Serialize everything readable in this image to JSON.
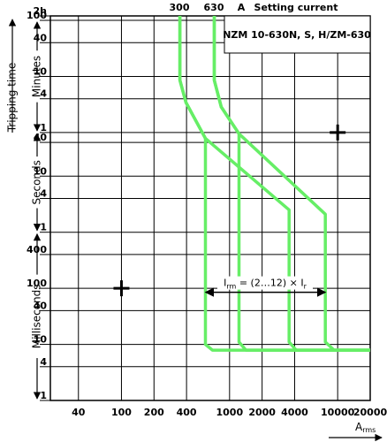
{
  "chart_data": {
    "type": "line",
    "log_x": true,
    "log_y": true,
    "grid": true,
    "xlim": [
      22,
      20000
    ],
    "xticks": [
      40,
      100,
      200,
      400,
      1000,
      2000,
      4000,
      10000,
      20000
    ],
    "ylim": [
      0.001,
      7200
    ],
    "yticks": [
      {
        "value": 7200,
        "label": "2h"
      },
      {
        "value": 6000,
        "label": "100"
      },
      {
        "value": 2400,
        "label": "40"
      },
      {
        "value": 600,
        "label": "10"
      },
      {
        "value": 240,
        "label": "4"
      },
      {
        "value": 60,
        "label": "1"
      },
      40,
      10,
      4,
      1,
      {
        "value": 0.4,
        "label": "400"
      },
      {
        "value": 0.1,
        "label": "100"
      },
      {
        "value": 0.04,
        "label": "40"
      },
      {
        "value": 0.01,
        "label": "10"
      },
      {
        "value": 0.004,
        "label": "4"
      },
      {
        "value": 0.001,
        "label": "1"
      }
    ],
    "y_label": "Tripping time",
    "y_ranges": [
      {
        "label": "Minutes",
        "from": 6000,
        "to": 60
      },
      {
        "label": "Seconds",
        "from": 60,
        "to": 1
      },
      {
        "label": "Milliseconds",
        "from": 1,
        "to": 0.001
      }
    ],
    "x_label": {
      "main": "A",
      "sub": "rms"
    },
    "top_labels": [
      "300",
      "630",
      "A",
      "Setting current"
    ],
    "box_title": "NZM 10-630N, S, H/ZM-630",
    "irm_label": [
      "I",
      "rm",
      " = (2…12) × I",
      "r"
    ],
    "irm_range": [
      600,
      7700
    ],
    "irm_time": 0.085,
    "markers": [
      {
        "x": 100,
        "y": 0.1
      },
      {
        "x": 10000,
        "y": 60
      }
    ],
    "series": [
      {
        "color": "#66ee66",
        "x": [
          347,
          347,
          395,
          598,
          598,
          695,
          20000
        ],
        "values": [
          7200,
          514,
          205,
          47,
          0.01,
          0.0079,
          0.0079
        ]
      },
      {
        "color": "#66ee66",
        "x": [
          347,
          347,
          395,
          598,
          3556,
          3556,
          4140,
          20000
        ],
        "values": [
          7200,
          514,
          205,
          47,
          2.5,
          0.011,
          0.0079,
          0.0079
        ]
      },
      {
        "color": "#66ee66",
        "x": [
          722,
          722,
          838,
          1222,
          1222,
          1419,
          20000
        ],
        "values": [
          7200,
          514,
          171,
          57,
          0.011,
          0.0079,
          0.0079
        ]
      },
      {
        "color": "#66ee66",
        "x": [
          722,
          722,
          838,
          1222,
          7690,
          7690,
          9270,
          20000
        ],
        "values": [
          7200,
          514,
          171,
          57,
          2.1,
          0.011,
          0.0079,
          0.0079
        ]
      }
    ]
  }
}
